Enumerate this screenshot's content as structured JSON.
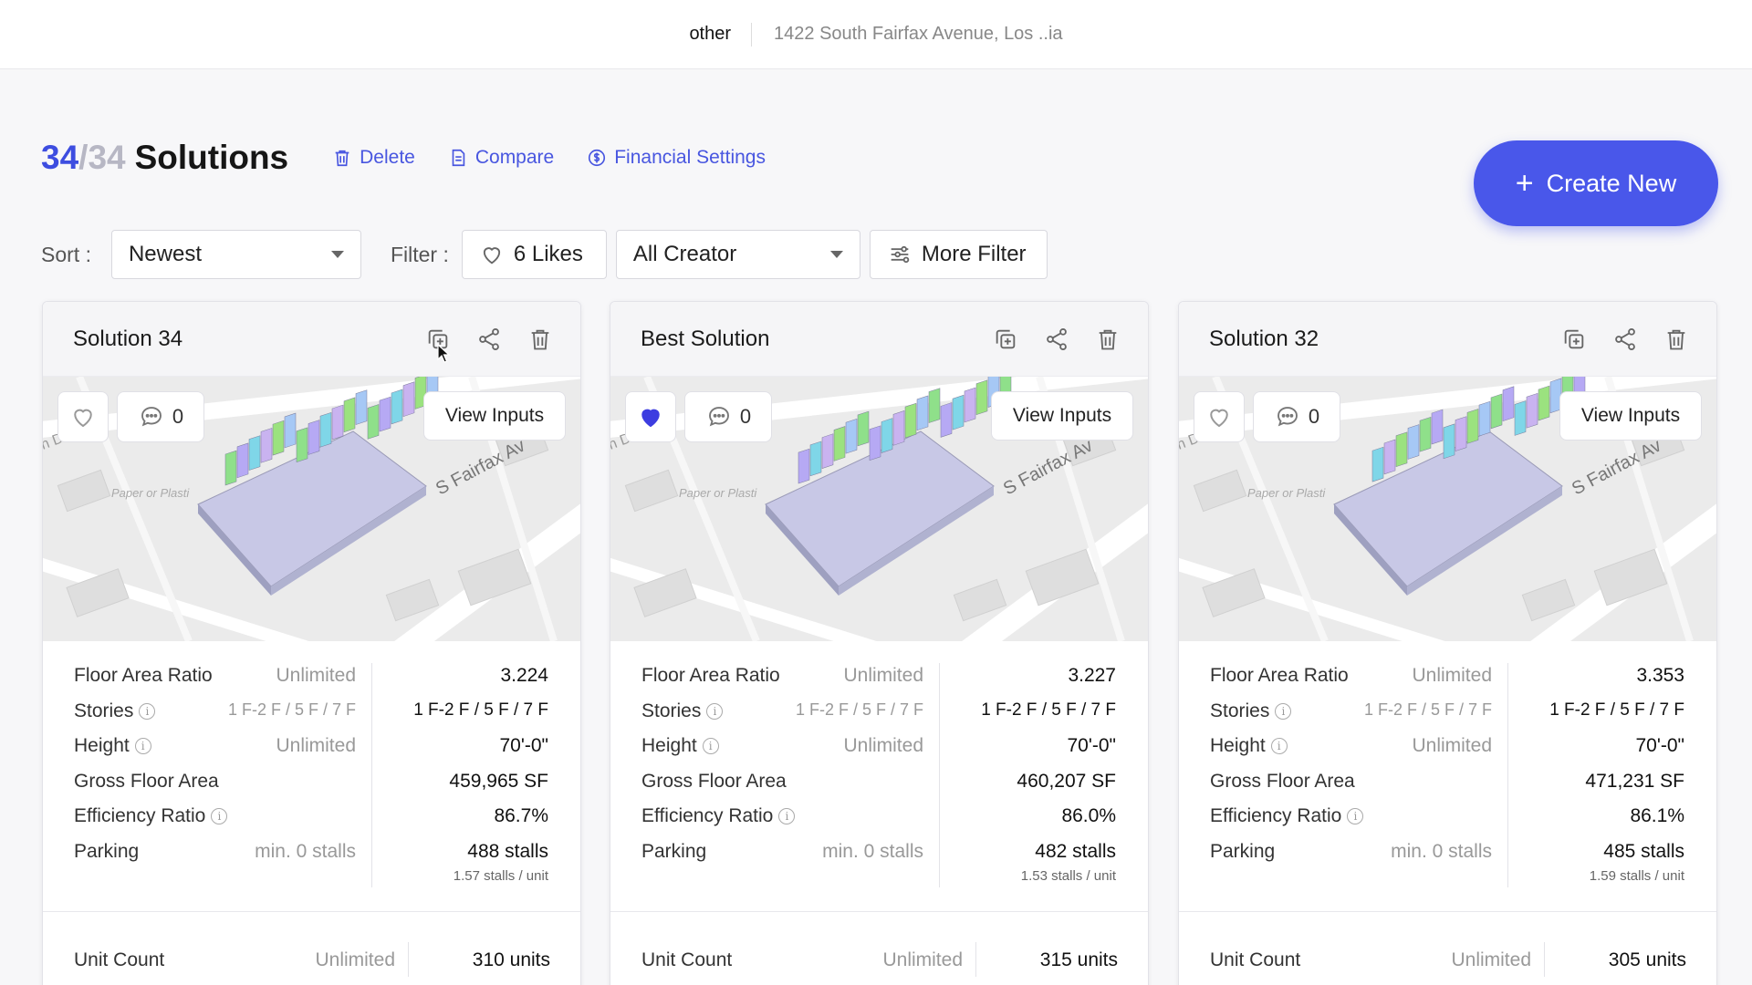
{
  "topbar": {
    "project": "other",
    "address": "1422 South Fairfax Avenue, Los ..ia"
  },
  "header": {
    "count_current": "34",
    "count_slash": "/",
    "count_total": "34",
    "count_word": "Solutions",
    "delete_label": "Delete",
    "compare_label": "Compare",
    "financial_label": "Financial Settings",
    "create_label": "Create New"
  },
  "filters": {
    "sort_label": "Sort :",
    "sort_value": "Newest",
    "filter_label": "Filter :",
    "likes_label": "6 Likes",
    "creator_value": "All Creator",
    "more_label": "More Filter"
  },
  "colors": {
    "accent": "#4957ea",
    "liked": "#3d3de0"
  },
  "cards": [
    {
      "title": "Solution 34",
      "liked": false,
      "comments": "0",
      "view_inputs": "View Inputs",
      "far_label": "Floor Area Ratio",
      "far_limit": "Unlimited",
      "far_value": "3.224",
      "stories_label": "Stories",
      "stories_limit": "1 F-2 F / 5 F / 7 F",
      "stories_value": "1 F-2 F / 5 F / 7 F",
      "height_label": "Height",
      "height_limit": "Unlimited",
      "height_value": "70'-0\"",
      "gfa_label": "Gross Floor Area",
      "gfa_value": "459,965 SF",
      "eff_label": "Efficiency Ratio",
      "eff_value": "86.7%",
      "parking_label": "Parking",
      "parking_limit": "min. 0 stalls",
      "parking_value": "488 stalls",
      "parking_sub": "1.57 stalls / unit",
      "unit_label": "Unit Count",
      "unit_limit": "Unlimited",
      "unit_value": "310 units"
    },
    {
      "title": "Best Solution",
      "liked": true,
      "comments": "0",
      "view_inputs": "View Inputs",
      "far_label": "Floor Area Ratio",
      "far_limit": "Unlimited",
      "far_value": "3.227",
      "stories_label": "Stories",
      "stories_limit": "1 F-2 F / 5 F / 7 F",
      "stories_value": "1 F-2 F / 5 F / 7 F",
      "height_label": "Height",
      "height_limit": "Unlimited",
      "height_value": "70'-0\"",
      "gfa_label": "Gross Floor Area",
      "gfa_value": "460,207 SF",
      "eff_label": "Efficiency Ratio",
      "eff_value": "86.0%",
      "parking_label": "Parking",
      "parking_limit": "min. 0 stalls",
      "parking_value": "482 stalls",
      "parking_sub": "1.53 stalls / unit",
      "unit_label": "Unit Count",
      "unit_limit": "Unlimited",
      "unit_value": "315 units"
    },
    {
      "title": "Solution 32",
      "liked": false,
      "comments": "0",
      "view_inputs": "View Inputs",
      "far_label": "Floor Area Ratio",
      "far_limit": "Unlimited",
      "far_value": "3.353",
      "stories_label": "Stories",
      "stories_limit": "1 F-2 F / 5 F / 7 F",
      "stories_value": "1 F-2 F / 5 F / 7 F",
      "height_label": "Height",
      "height_limit": "Unlimited",
      "height_value": "70'-0\"",
      "gfa_label": "Gross Floor Area",
      "gfa_value": "471,231 SF",
      "eff_label": "Efficiency Ratio",
      "eff_value": "86.1%",
      "parking_label": "Parking",
      "parking_limit": "min. 0 stalls",
      "parking_value": "485 stalls",
      "parking_sub": "1.59 stalls / unit",
      "unit_label": "Unit Count",
      "unit_limit": "Unlimited",
      "unit_value": "305 units"
    }
  ],
  "map": {
    "street_label": "S Fairfax Av",
    "poi_label": "Paper or Plasti",
    "street_left": "n Dr"
  }
}
